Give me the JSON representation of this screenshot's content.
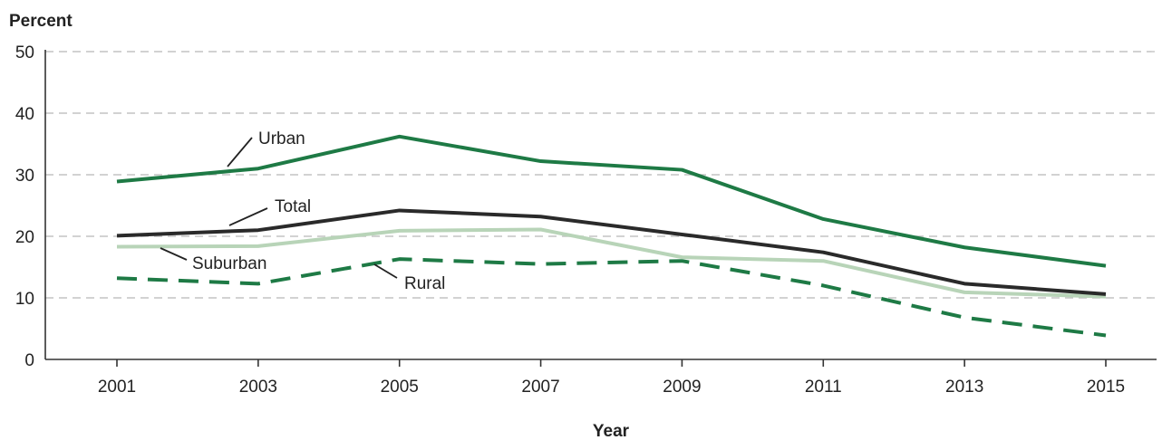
{
  "chart_data": {
    "type": "line",
    "title": "",
    "xlabel": "Year",
    "ylabel": "Percent",
    "x": [
      "2001",
      "2003",
      "2005",
      "2007",
      "2009",
      "2011",
      "2013",
      "2015"
    ],
    "ylim": [
      0,
      50
    ],
    "yticks": [
      "0",
      "10",
      "20",
      "30",
      "40",
      "50"
    ],
    "grid": true,
    "legend": "inline labels",
    "series": [
      {
        "name": "Urban",
        "color": "#1e7a45",
        "dash": "solid",
        "values": [
          28.9,
          31.0,
          36.2,
          32.2,
          30.8,
          22.8,
          18.2,
          15.2
        ]
      },
      {
        "name": "Total",
        "color": "#2a2a2a",
        "dash": "solid",
        "values": [
          20.1,
          21.0,
          24.2,
          23.2,
          20.3,
          17.4,
          12.3,
          10.6
        ]
      },
      {
        "name": "Suburban",
        "color": "#b8d4b8",
        "dash": "solid",
        "values": [
          18.3,
          18.4,
          20.9,
          21.1,
          16.6,
          16.0,
          10.9,
          10.2
        ]
      },
      {
        "name": "Rural",
        "color": "#1e7a45",
        "dash": "dashed",
        "values": [
          13.2,
          12.3,
          16.3,
          15.5,
          16.0,
          12.0,
          6.8,
          3.9
        ]
      }
    ]
  }
}
